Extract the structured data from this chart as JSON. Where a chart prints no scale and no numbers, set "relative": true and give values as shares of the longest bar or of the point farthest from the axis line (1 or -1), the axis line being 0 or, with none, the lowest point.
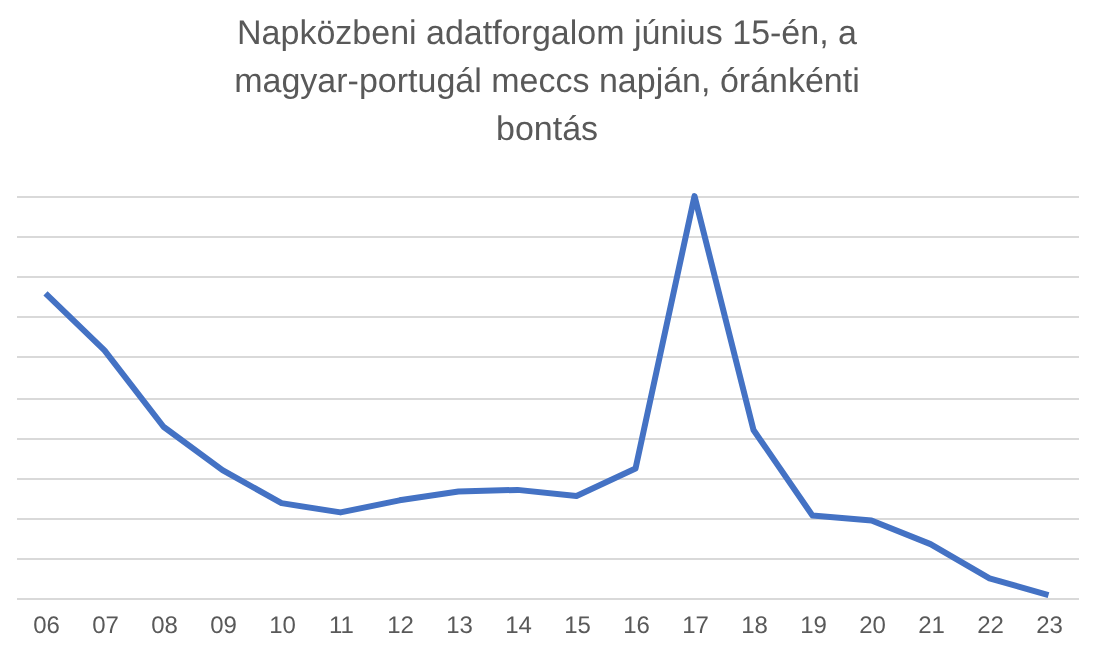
{
  "chart_data": {
    "type": "line",
    "title": "Napközbeni adatforgalom június 15-én, a magyar-portugál meccs napján, óránkénti bontás",
    "categories": [
      "06",
      "07",
      "08",
      "09",
      "10",
      "11",
      "12",
      "13",
      "14",
      "15",
      "16",
      "17",
      "18",
      "19",
      "20",
      "21",
      "22",
      "23"
    ],
    "series": [
      {
        "color": "#4472c4",
        "values": [
          0.758,
          0.616,
          0.426,
          0.318,
          0.236,
          0.213,
          0.243,
          0.265,
          0.269,
          0.254,
          0.322,
          1,
          0.418,
          0.205,
          0.193,
          0.134,
          0.049,
          0.007
        ]
      }
    ],
    "relative": true,
    "grid": "y",
    "marker": "none",
    "line_style": "solid"
  }
}
